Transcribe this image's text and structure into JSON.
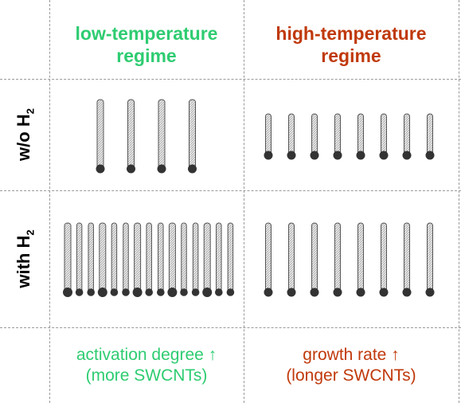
{
  "columns": {
    "low": {
      "line1": "low-temperature",
      "line2": "regime",
      "color": "#2ecc71"
    },
    "high": {
      "line1": "high-temperature",
      "line2": "regime",
      "color": "#c0390b"
    }
  },
  "rows": {
    "without": {
      "prefix": "w/o H",
      "sub": "2"
    },
    "with": {
      "prefix": "with H",
      "sub": "2"
    }
  },
  "footer": {
    "low": {
      "line1": "activation degree ↑",
      "line2": "(more SWCNTs)"
    },
    "high": {
      "line1": "growth rate ↑",
      "line2": "(longer SWCNTs)"
    }
  },
  "panels": {
    "low_without": {
      "tubes": 4,
      "length": "long"
    },
    "high_without": {
      "tubes": 8,
      "length": "short"
    },
    "low_with": {
      "tubes": 15,
      "length": "long"
    },
    "high_with": {
      "tubes": 8,
      "length": "long"
    }
  },
  "colors": {
    "tube_fill": "#e9e9e9",
    "tube_stroke": "#555555",
    "catalyst": "#333333",
    "grid": "#9a9a9a"
  }
}
